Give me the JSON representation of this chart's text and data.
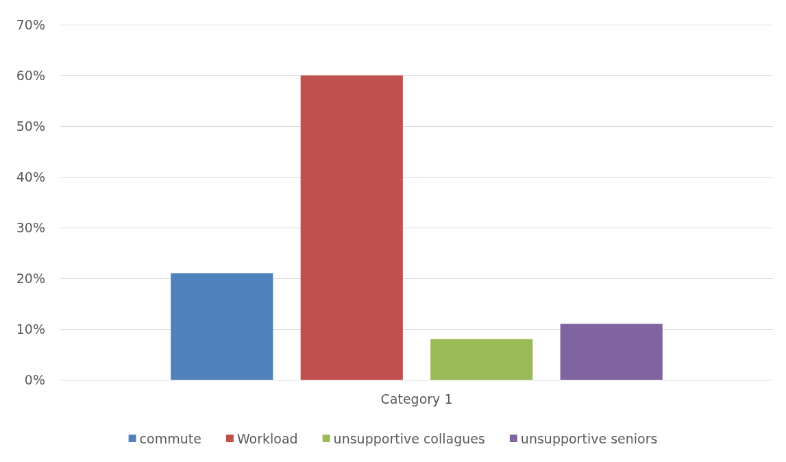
{
  "chart_data": {
    "type": "bar",
    "categories": [
      "Category 1"
    ],
    "series": [
      {
        "name": "commute",
        "color": "#4f81bd",
        "values": [
          21
        ]
      },
      {
        "name": "Workload",
        "color": "#c0504d",
        "values": [
          60
        ]
      },
      {
        "name": "unsupportive collagues",
        "color": "#9bbb59",
        "values": [
          8
        ]
      },
      {
        "name": "unsupportive seniors",
        "color": "#8064a2",
        "values": [
          11
        ]
      }
    ],
    "ylim": [
      0,
      70
    ],
    "yticks": [
      {
        "value": 0,
        "label": "0%"
      },
      {
        "value": 10,
        "label": "10%"
      },
      {
        "value": 20,
        "label": "20%"
      },
      {
        "value": 30,
        "label": "30%"
      },
      {
        "value": 40,
        "label": "40%"
      },
      {
        "value": 50,
        "label": "50%"
      },
      {
        "value": 60,
        "label": "60%"
      },
      {
        "value": 70,
        "label": "70%"
      }
    ],
    "grid": "y",
    "legend": "bottom"
  }
}
